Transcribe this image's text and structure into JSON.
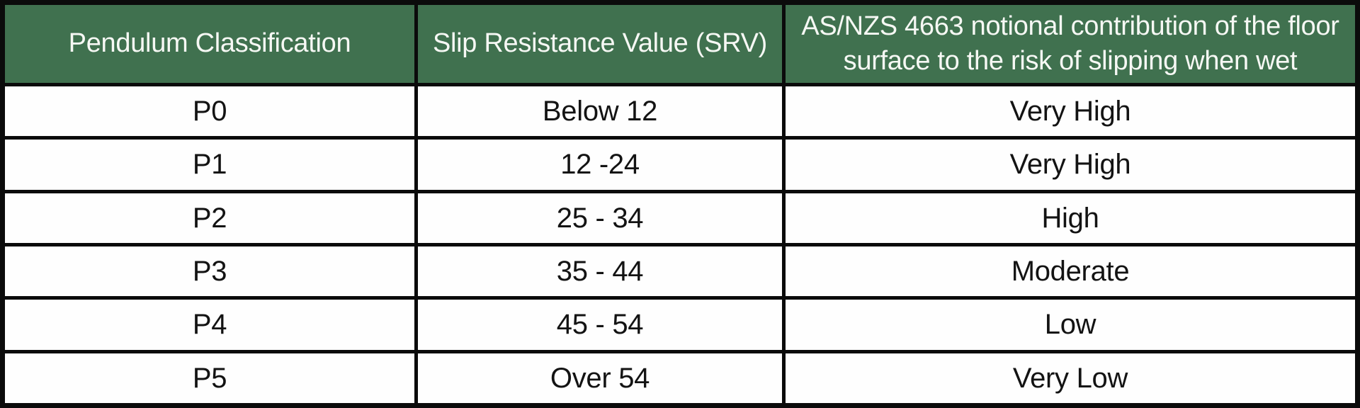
{
  "chart_data": {
    "type": "table",
    "title": "",
    "columns": [
      "Pendulum Classification",
      "Slip Resistance Value (SRV)",
      "AS/NZS 4663 notional contribution of the floor surface to the risk of slipping when wet"
    ],
    "rows": [
      [
        "P0",
        "Below 12",
        "Very High"
      ],
      [
        "P1",
        "12 -24",
        "Very High"
      ],
      [
        "P2",
        "25 - 34",
        "High"
      ],
      [
        "P3",
        "35 - 44",
        "Moderate"
      ],
      [
        "P4",
        "45 - 54",
        "Low"
      ],
      [
        "P5",
        "Over 54",
        "Very Low"
      ]
    ],
    "layout_hints": {
      "header_background": "#40714F",
      "header_text_color": "#F6F8F4",
      "border_color": "#0B0B0B",
      "cell_background": "#FEFEFE",
      "cell_text_color": "#131313",
      "third_header_line_break": true
    }
  },
  "header": {
    "col1": "Pendulum Classification",
    "col2": "Slip Resistance Value (SRV)",
    "col3_line1": "AS/NZS 4663 notional contribution of the floor",
    "col3_line2": "surface to the risk of slipping when wet"
  }
}
